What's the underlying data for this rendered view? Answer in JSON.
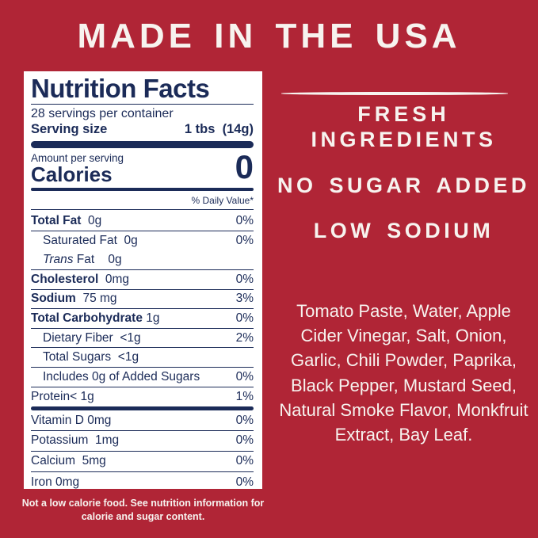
{
  "colors": {
    "background": "#b02536",
    "panel": "#ffffff",
    "ink": "#1b2b58",
    "text_white": "#f7f3ef"
  },
  "header": {
    "title": "MADE IN THE USA"
  },
  "nutrition_panel": {
    "title": "Nutrition Facts",
    "servings_per_container": "28 servings per container",
    "serving_size_label": "Serving size",
    "serving_size_value": "1 tbs  (14g)",
    "amount_per_serving": "Amount per serving",
    "calories_label": "Calories",
    "calories_value": "0",
    "daily_value_header": "% Daily Value*",
    "main_rows": [
      {
        "segments": [
          {
            "text": "Total Fat",
            "bold": true
          },
          {
            "text": "  0g"
          }
        ],
        "pct": "0%",
        "indent": 0,
        "sep": true
      },
      {
        "segments": [
          {
            "text": "Saturated Fat  0g"
          }
        ],
        "pct": "0%",
        "indent": 1,
        "sep": false
      },
      {
        "segments": [
          {
            "text": "Trans",
            "italic": true
          },
          {
            "text": " Fat    0g"
          }
        ],
        "pct": "",
        "indent": 1,
        "sep": true
      },
      {
        "segments": [
          {
            "text": "Cholesterol",
            "bold": true
          },
          {
            "text": "  0mg"
          }
        ],
        "pct": "0%",
        "indent": 0,
        "sep": true
      },
      {
        "segments": [
          {
            "text": "Sodium",
            "bold": true
          },
          {
            "text": "  75 mg"
          }
        ],
        "pct": "3%",
        "indent": 0,
        "sep": true
      },
      {
        "segments": [
          {
            "text": "Total Carbohydrate",
            "bold": true
          },
          {
            "text": " 1g"
          }
        ],
        "pct": "0%",
        "indent": 0,
        "sep": true
      },
      {
        "segments": [
          {
            "text": "Dietary Fiber  <1g"
          }
        ],
        "pct": "2%",
        "indent": 1,
        "sep": true
      },
      {
        "segments": [
          {
            "text": "Total Sugars  <1g"
          }
        ],
        "pct": "",
        "indent": 1,
        "sep": true
      },
      {
        "segments": [
          {
            "text": "Includes 0g of Added Sugars"
          }
        ],
        "pct": "0%",
        "indent": 1,
        "sep": true
      },
      {
        "segments": [
          {
            "text": "Protein"
          },
          {
            "text": "< 1g"
          }
        ],
        "pct": "1%",
        "indent": 0,
        "sep": false
      }
    ],
    "vitamin_rows": [
      {
        "segments": [
          {
            "text": "Vitamin D 0mg"
          }
        ],
        "pct": "0%",
        "indent": 0,
        "sep": true
      },
      {
        "segments": [
          {
            "text": "Potassium  1mg"
          }
        ],
        "pct": "0%",
        "indent": 0,
        "sep": true
      },
      {
        "segments": [
          {
            "text": "Calcium  5mg"
          }
        ],
        "pct": "0%",
        "indent": 0,
        "sep": true
      },
      {
        "segments": [
          {
            "text": "Iron 0mg"
          }
        ],
        "pct": "0%",
        "indent": 0,
        "sep": false
      }
    ],
    "footnote": "Not a low calorie food. See nutrition information for calorie and sugar content."
  },
  "claims": {
    "fresh_line1": "FRESH",
    "fresh_line2": "INGREDIENTS",
    "no_sugar": "NO SUGAR ADDED",
    "low_sodium": "LOW SODIUM"
  },
  "ingredients_lines": [
    "Tomato Paste, Water, Apple",
    "Cider Vinegar, Salt, Onion,",
    "Garlic, Chili Powder, Paprika,",
    "Black Pepper, Mustard Seed,",
    "Natural Smoke Flavor, Monkfruit",
    "Extract, Bay Leaf."
  ]
}
